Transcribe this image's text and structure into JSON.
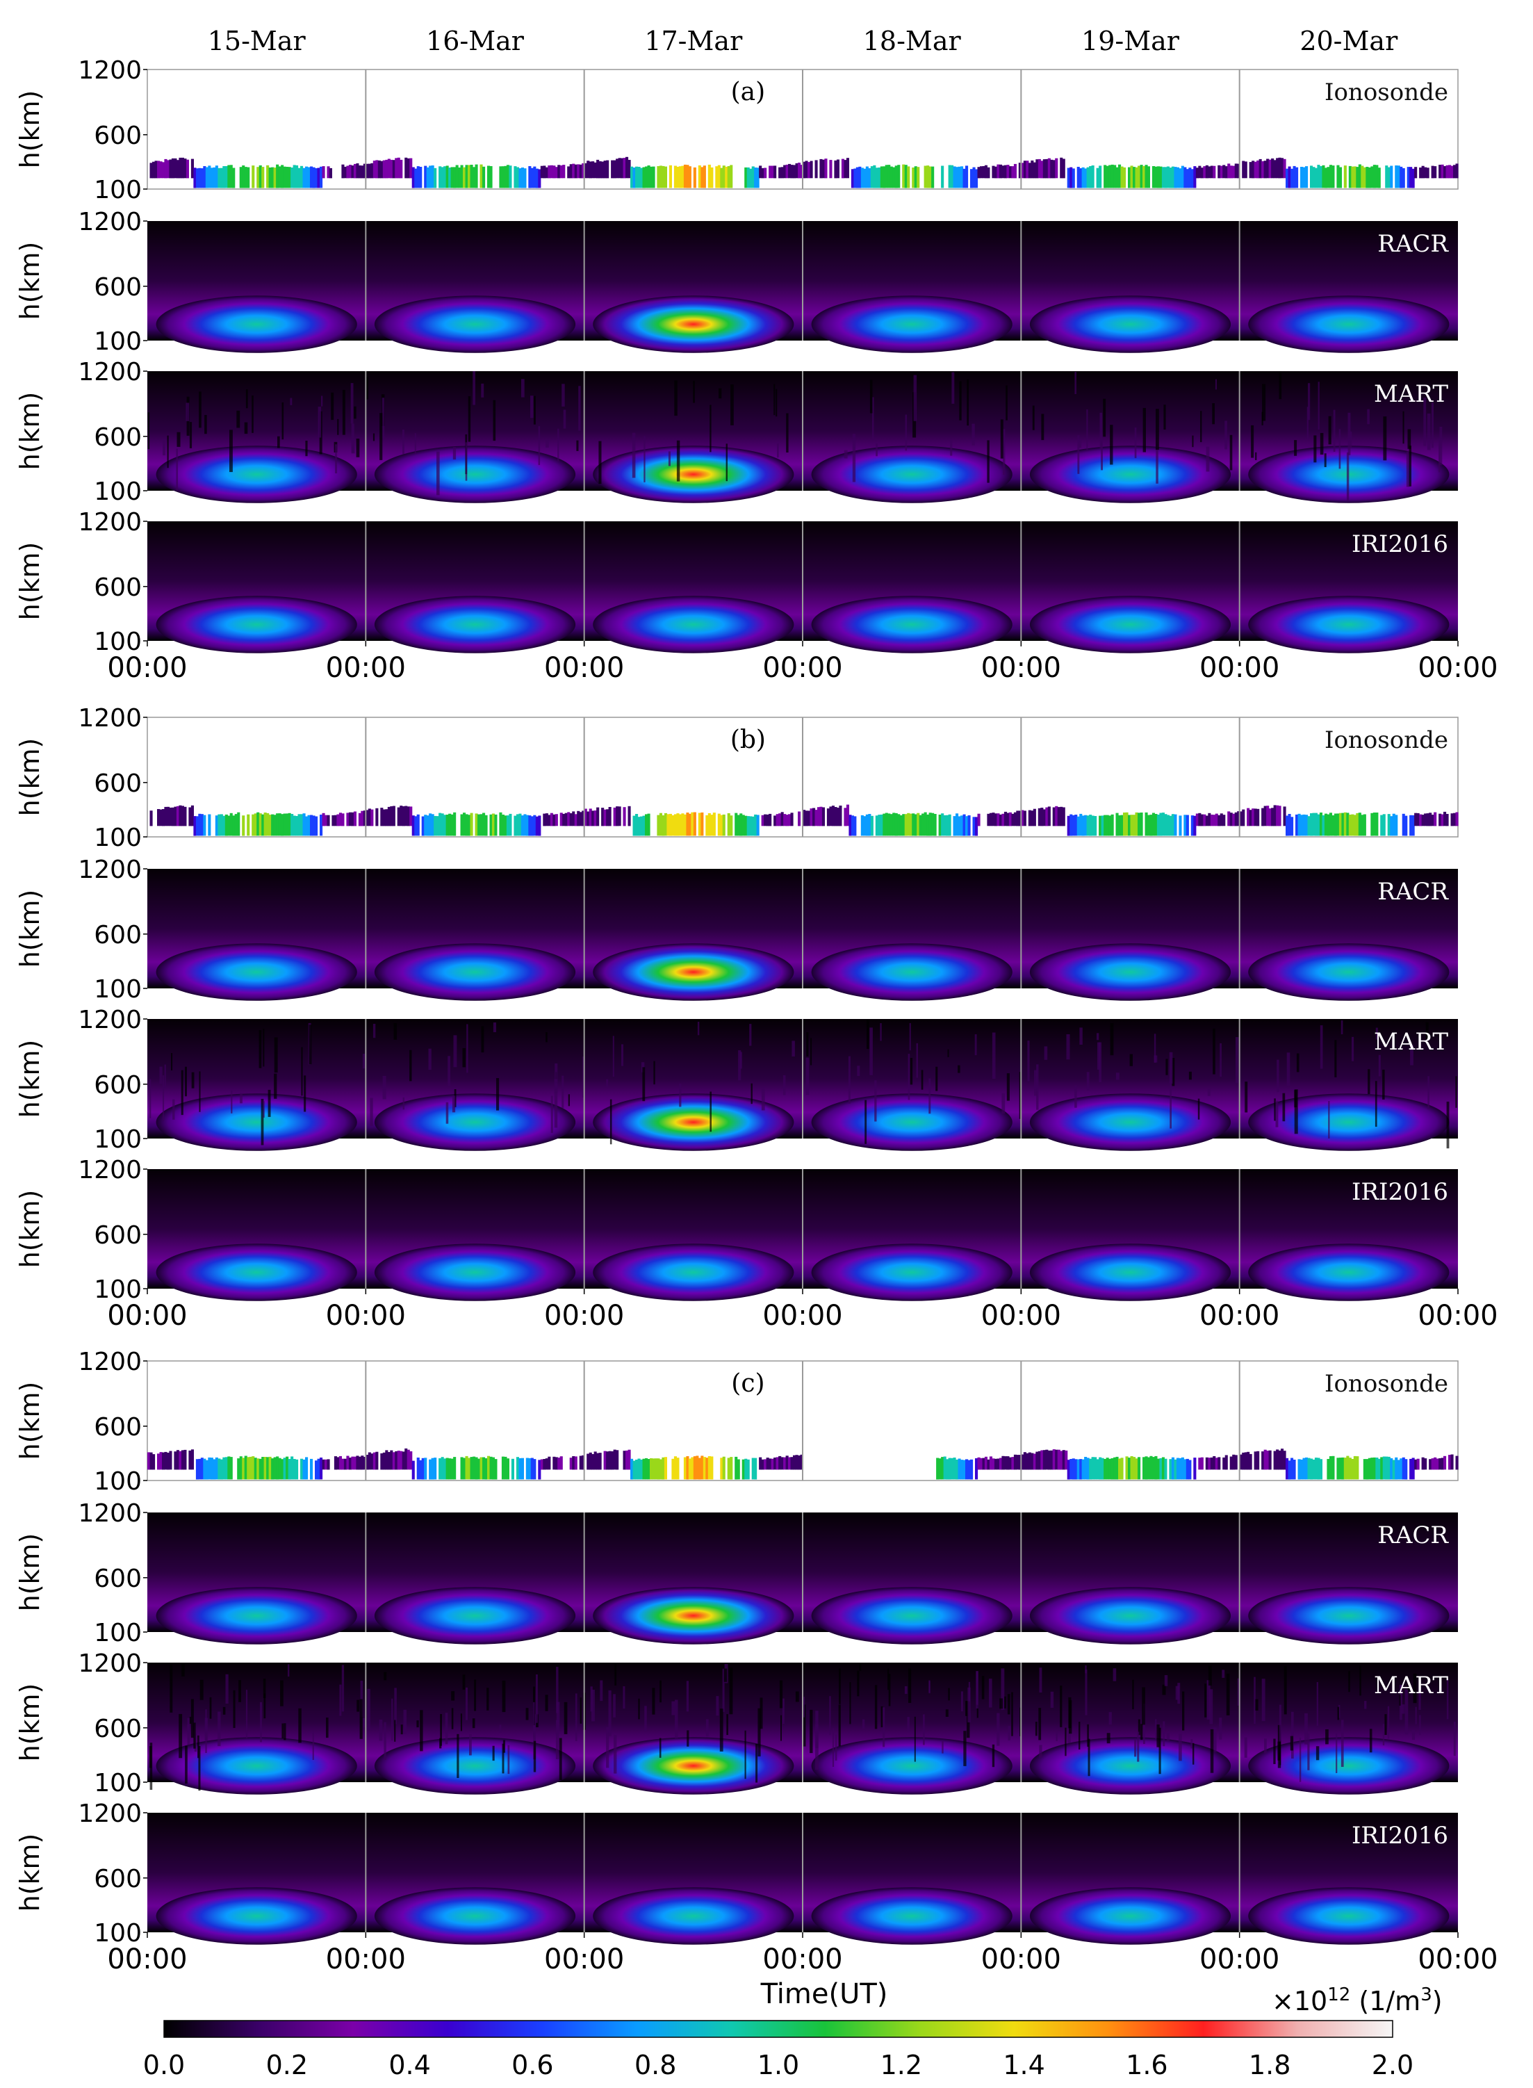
{
  "chart_data": {
    "type": "heatmap",
    "day_labels": [
      "15-Mar",
      "16-Mar",
      "17-Mar",
      "18-Mar",
      "19-Mar",
      "20-Mar"
    ],
    "x_tick_labels": [
      "00:00",
      "00:00",
      "00:00",
      "00:00",
      "00:00",
      "00:00",
      "00:00"
    ],
    "xlabel": "Time(UT)",
    "ylabel": "h(km)",
    "y_ticks": [
      100,
      600,
      1200
    ],
    "ylim": [
      100,
      1200
    ],
    "groups": [
      {
        "label": "(a)",
        "panels": [
          {
            "name": "Ionosonde"
          },
          {
            "name": "RACR"
          },
          {
            "name": "MART"
          },
          {
            "name": "IRI2016"
          }
        ]
      },
      {
        "label": "(b)",
        "panels": [
          {
            "name": "Ionosonde"
          },
          {
            "name": "RACR"
          },
          {
            "name": "MART"
          },
          {
            "name": "IRI2016"
          }
        ]
      },
      {
        "label": "(c)",
        "panels": [
          {
            "name": "Ionosonde"
          },
          {
            "name": "RACR"
          },
          {
            "name": "MART"
          },
          {
            "name": "IRI2016"
          }
        ]
      }
    ],
    "colorbar": {
      "ticks": [
        "0.0",
        "0.2",
        "0.4",
        "0.6",
        "0.8",
        "1.0",
        "1.2",
        "1.4",
        "1.6",
        "1.8",
        "2.0"
      ],
      "range": [
        0,
        2.0
      ],
      "multiplier": "×10",
      "exponent": "12",
      "unit_open": " (1/m",
      "unit_sup": "3",
      "unit_close": ")",
      "colors": [
        "#000000",
        "#3a0068",
        "#7b00a8",
        "#3a00d0",
        "#1a40ff",
        "#0a9cff",
        "#10c8b0",
        "#19c33a",
        "#9ad81a",
        "#f0dc10",
        "#ff9010",
        "#ff2020",
        "#f0b0b0",
        "#f6f6f6"
      ]
    }
  }
}
